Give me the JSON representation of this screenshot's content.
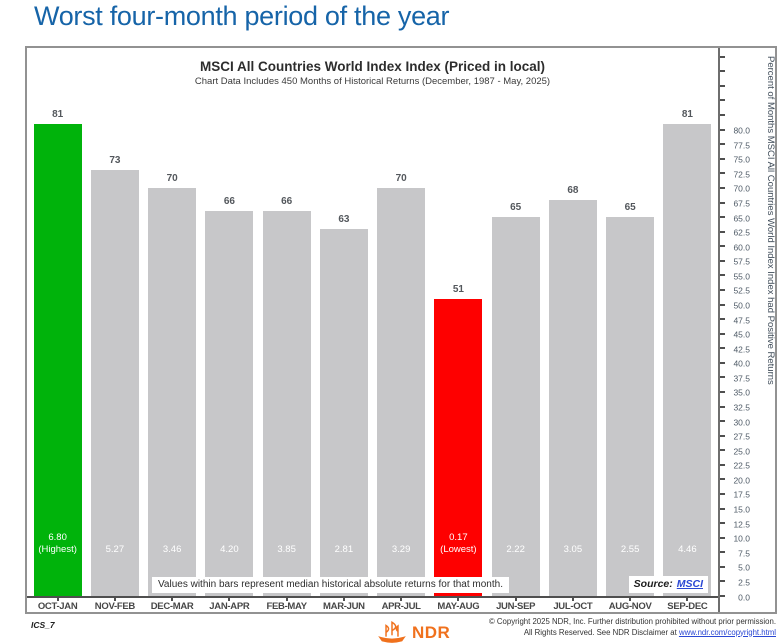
{
  "page": {
    "title": "Worst four-month period of the year"
  },
  "chart": {
    "title": "MSCI All Countries World Index Index (Priced in local)",
    "subtitle": "Chart Data Includes 450 Months of Historical Returns (December, 1987 - May, 2025)",
    "note": "Values within bars represent median historical absolute returns for that month.",
    "source_label": "Source:",
    "source_link_text": "MSCI",
    "y_axis_title": "Percent of Months MSCI All Countries World Index Index had Positive Returns"
  },
  "chart_data": {
    "type": "bar",
    "title": "MSCI All Countries World Index Index (Priced in local)",
    "subtitle": "Chart Data Includes 450 Months of Historical Returns (December, 1987 - May, 2025)",
    "categories": [
      "OCT-JAN",
      "NOV-FEB",
      "DEC-MAR",
      "JAN-APR",
      "FEB-MAY",
      "MAR-JUN",
      "APR-JUL",
      "MAY-AUG",
      "JUN-SEP",
      "JUL-OCT",
      "AUG-NOV",
      "SEP-DEC"
    ],
    "series": [
      {
        "name": "Percent of months index had positive returns",
        "values": [
          81,
          73,
          70,
          66,
          66,
          63,
          70,
          51,
          65,
          68,
          65,
          81
        ]
      },
      {
        "name": "Median historical absolute return",
        "values": [
          "6.80",
          "5.27",
          "3.46",
          "4.20",
          "3.85",
          "2.81",
          "3.29",
          "0.17",
          "2.22",
          "3.05",
          "2.55",
          "4.46"
        ]
      }
    ],
    "annotations": [
      "(Highest)",
      "",
      "",
      "",
      "",
      "",
      "",
      "(Lowest)",
      "",
      "",
      "",
      ""
    ],
    "highlight": {
      "highest_index": 0,
      "lowest_index": 7
    },
    "ylabel": "Percent of Months MSCI All Countries World Index Index had Positive Returns",
    "ylim": [
      0,
      94
    ],
    "y_tick_step": 2.5,
    "y_tick_label_max": 80,
    "grid": false,
    "legend": false,
    "colors": {
      "highest": "#00b30b",
      "lowest": "#fe0000",
      "default": "#c7c7c9"
    }
  },
  "footer": {
    "chart_code": "ICS_7",
    "logo_text": "NDR",
    "copyright_line1": "© Copyright 2025 NDR, Inc. Further distribution prohibited without prior permission.",
    "copyright_line2_prefix": "All Rights Reserved. See NDR Disclaimer at ",
    "copyright_link": "www.ndr.com/copyright.html"
  }
}
